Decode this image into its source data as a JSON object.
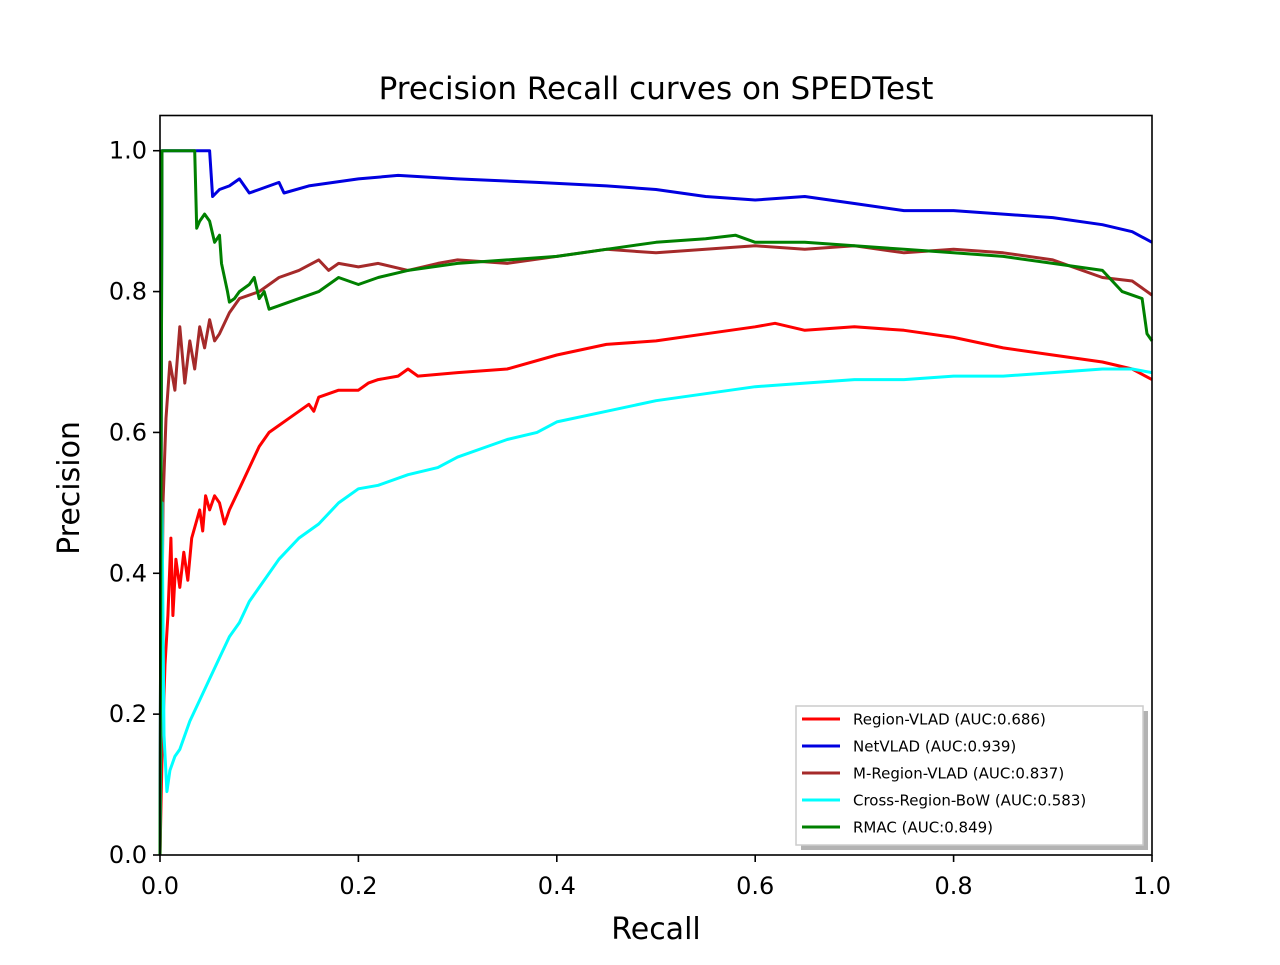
{
  "chart_data": {
    "type": "line",
    "title": "Precision Recall curves on SPEDTest",
    "xlabel": "Recall",
    "ylabel": "Precision",
    "xlim": [
      0.0,
      1.0
    ],
    "ylim": [
      0.0,
      1.05
    ],
    "xticks": [
      "0.0",
      "0.2",
      "0.4",
      "0.6",
      "0.8",
      "1.0"
    ],
    "yticks": [
      "0.0",
      "0.2",
      "0.4",
      "0.6",
      "0.8",
      "1.0"
    ],
    "grid": false,
    "legend_position": "lower-right",
    "series": [
      {
        "name": "Region-VLAD (AUC:0.686)",
        "color": "#ff0000",
        "points": [
          [
            0.0,
            0.0
          ],
          [
            0.002,
            0.14
          ],
          [
            0.005,
            0.27
          ],
          [
            0.008,
            0.34
          ],
          [
            0.011,
            0.45
          ],
          [
            0.013,
            0.34
          ],
          [
            0.016,
            0.42
          ],
          [
            0.02,
            0.38
          ],
          [
            0.024,
            0.43
          ],
          [
            0.028,
            0.39
          ],
          [
            0.032,
            0.45
          ],
          [
            0.036,
            0.47
          ],
          [
            0.04,
            0.49
          ],
          [
            0.043,
            0.46
          ],
          [
            0.046,
            0.51
          ],
          [
            0.05,
            0.49
          ],
          [
            0.055,
            0.51
          ],
          [
            0.06,
            0.5
          ],
          [
            0.065,
            0.47
          ],
          [
            0.07,
            0.49
          ],
          [
            0.08,
            0.52
          ],
          [
            0.09,
            0.55
          ],
          [
            0.1,
            0.58
          ],
          [
            0.11,
            0.6
          ],
          [
            0.12,
            0.61
          ],
          [
            0.13,
            0.62
          ],
          [
            0.14,
            0.63
          ],
          [
            0.15,
            0.64
          ],
          [
            0.155,
            0.63
          ],
          [
            0.16,
            0.65
          ],
          [
            0.18,
            0.66
          ],
          [
            0.2,
            0.66
          ],
          [
            0.21,
            0.67
          ],
          [
            0.22,
            0.675
          ],
          [
            0.24,
            0.68
          ],
          [
            0.25,
            0.69
          ],
          [
            0.26,
            0.68
          ],
          [
            0.3,
            0.685
          ],
          [
            0.35,
            0.69
          ],
          [
            0.4,
            0.71
          ],
          [
            0.45,
            0.725
          ],
          [
            0.5,
            0.73
          ],
          [
            0.55,
            0.74
          ],
          [
            0.6,
            0.75
          ],
          [
            0.62,
            0.755
          ],
          [
            0.65,
            0.745
          ],
          [
            0.7,
            0.75
          ],
          [
            0.75,
            0.745
          ],
          [
            0.8,
            0.735
          ],
          [
            0.85,
            0.72
          ],
          [
            0.9,
            0.71
          ],
          [
            0.95,
            0.7
          ],
          [
            0.98,
            0.69
          ],
          [
            1.0,
            0.675
          ]
        ]
      },
      {
        "name": "NetVLAD (AUC:0.939)",
        "color": "#0000e0",
        "points": [
          [
            0.0,
            0.0
          ],
          [
            0.002,
            1.0
          ],
          [
            0.05,
            1.0
          ],
          [
            0.053,
            0.935
          ],
          [
            0.06,
            0.945
          ],
          [
            0.07,
            0.95
          ],
          [
            0.08,
            0.96
          ],
          [
            0.09,
            0.94
          ],
          [
            0.1,
            0.945
          ],
          [
            0.12,
            0.955
          ],
          [
            0.125,
            0.94
          ],
          [
            0.15,
            0.95
          ],
          [
            0.2,
            0.96
          ],
          [
            0.24,
            0.965
          ],
          [
            0.3,
            0.96
          ],
          [
            0.38,
            0.955
          ],
          [
            0.45,
            0.95
          ],
          [
            0.5,
            0.945
          ],
          [
            0.55,
            0.935
          ],
          [
            0.6,
            0.93
          ],
          [
            0.65,
            0.935
          ],
          [
            0.7,
            0.925
          ],
          [
            0.75,
            0.915
          ],
          [
            0.8,
            0.915
          ],
          [
            0.85,
            0.91
          ],
          [
            0.9,
            0.905
          ],
          [
            0.95,
            0.895
          ],
          [
            0.98,
            0.885
          ],
          [
            1.0,
            0.87
          ]
        ]
      },
      {
        "name": "M-Region-VLAD (AUC:0.837)",
        "color": "#a52a2a",
        "points": [
          [
            0.0,
            0.0
          ],
          [
            0.003,
            0.5
          ],
          [
            0.006,
            0.62
          ],
          [
            0.01,
            0.7
          ],
          [
            0.015,
            0.66
          ],
          [
            0.02,
            0.75
          ],
          [
            0.025,
            0.67
          ],
          [
            0.03,
            0.73
          ],
          [
            0.035,
            0.69
          ],
          [
            0.04,
            0.75
          ],
          [
            0.045,
            0.72
          ],
          [
            0.05,
            0.76
          ],
          [
            0.055,
            0.73
          ],
          [
            0.06,
            0.74
          ],
          [
            0.07,
            0.77
          ],
          [
            0.08,
            0.79
          ],
          [
            0.1,
            0.8
          ],
          [
            0.12,
            0.82
          ],
          [
            0.14,
            0.83
          ],
          [
            0.16,
            0.845
          ],
          [
            0.17,
            0.83
          ],
          [
            0.18,
            0.84
          ],
          [
            0.2,
            0.835
          ],
          [
            0.22,
            0.84
          ],
          [
            0.25,
            0.83
          ],
          [
            0.28,
            0.84
          ],
          [
            0.3,
            0.845
          ],
          [
            0.35,
            0.84
          ],
          [
            0.4,
            0.85
          ],
          [
            0.45,
            0.86
          ],
          [
            0.5,
            0.855
          ],
          [
            0.55,
            0.86
          ],
          [
            0.6,
            0.865
          ],
          [
            0.65,
            0.86
          ],
          [
            0.7,
            0.865
          ],
          [
            0.75,
            0.855
          ],
          [
            0.8,
            0.86
          ],
          [
            0.85,
            0.855
          ],
          [
            0.9,
            0.845
          ],
          [
            0.95,
            0.82
          ],
          [
            0.98,
            0.815
          ],
          [
            1.0,
            0.795
          ]
        ]
      },
      {
        "name": "Cross-Region-BoW (AUC:0.583)",
        "color": "#00ffff",
        "points": [
          [
            0.0,
            0.0
          ],
          [
            0.002,
            0.5
          ],
          [
            0.004,
            0.17
          ],
          [
            0.007,
            0.09
          ],
          [
            0.01,
            0.12
          ],
          [
            0.015,
            0.14
          ],
          [
            0.02,
            0.15
          ],
          [
            0.03,
            0.19
          ],
          [
            0.04,
            0.22
          ],
          [
            0.05,
            0.25
          ],
          [
            0.06,
            0.28
          ],
          [
            0.07,
            0.31
          ],
          [
            0.08,
            0.33
          ],
          [
            0.09,
            0.36
          ],
          [
            0.1,
            0.38
          ],
          [
            0.12,
            0.42
          ],
          [
            0.14,
            0.45
          ],
          [
            0.16,
            0.47
          ],
          [
            0.18,
            0.5
          ],
          [
            0.2,
            0.52
          ],
          [
            0.22,
            0.525
          ],
          [
            0.25,
            0.54
          ],
          [
            0.28,
            0.55
          ],
          [
            0.3,
            0.565
          ],
          [
            0.33,
            0.58
          ],
          [
            0.35,
            0.59
          ],
          [
            0.38,
            0.6
          ],
          [
            0.4,
            0.615
          ],
          [
            0.45,
            0.63
          ],
          [
            0.5,
            0.645
          ],
          [
            0.55,
            0.655
          ],
          [
            0.6,
            0.665
          ],
          [
            0.65,
            0.67
          ],
          [
            0.7,
            0.675
          ],
          [
            0.75,
            0.675
          ],
          [
            0.8,
            0.68
          ],
          [
            0.85,
            0.68
          ],
          [
            0.9,
            0.685
          ],
          [
            0.95,
            0.69
          ],
          [
            0.98,
            0.69
          ],
          [
            1.0,
            0.685
          ]
        ]
      },
      {
        "name": "RMAC (AUC:0.849)",
        "color": "#008000",
        "points": [
          [
            0.0,
            0.0
          ],
          [
            0.002,
            1.0
          ],
          [
            0.035,
            1.0
          ],
          [
            0.037,
            0.89
          ],
          [
            0.04,
            0.9
          ],
          [
            0.045,
            0.91
          ],
          [
            0.05,
            0.9
          ],
          [
            0.055,
            0.87
          ],
          [
            0.06,
            0.88
          ],
          [
            0.062,
            0.84
          ],
          [
            0.065,
            0.82
          ],
          [
            0.068,
            0.8
          ],
          [
            0.07,
            0.785
          ],
          [
            0.075,
            0.79
          ],
          [
            0.08,
            0.8
          ],
          [
            0.09,
            0.81
          ],
          [
            0.095,
            0.82
          ],
          [
            0.1,
            0.79
          ],
          [
            0.105,
            0.8
          ],
          [
            0.11,
            0.775
          ],
          [
            0.12,
            0.78
          ],
          [
            0.14,
            0.79
          ],
          [
            0.16,
            0.8
          ],
          [
            0.18,
            0.82
          ],
          [
            0.2,
            0.81
          ],
          [
            0.22,
            0.82
          ],
          [
            0.25,
            0.83
          ],
          [
            0.3,
            0.84
          ],
          [
            0.35,
            0.845
          ],
          [
            0.4,
            0.85
          ],
          [
            0.45,
            0.86
          ],
          [
            0.5,
            0.87
          ],
          [
            0.55,
            0.875
          ],
          [
            0.58,
            0.88
          ],
          [
            0.6,
            0.87
          ],
          [
            0.65,
            0.87
          ],
          [
            0.7,
            0.865
          ],
          [
            0.75,
            0.86
          ],
          [
            0.8,
            0.855
          ],
          [
            0.85,
            0.85
          ],
          [
            0.9,
            0.84
          ],
          [
            0.95,
            0.83
          ],
          [
            0.97,
            0.8
          ],
          [
            0.99,
            0.79
          ],
          [
            0.995,
            0.74
          ],
          [
            1.0,
            0.73
          ]
        ]
      }
    ]
  }
}
